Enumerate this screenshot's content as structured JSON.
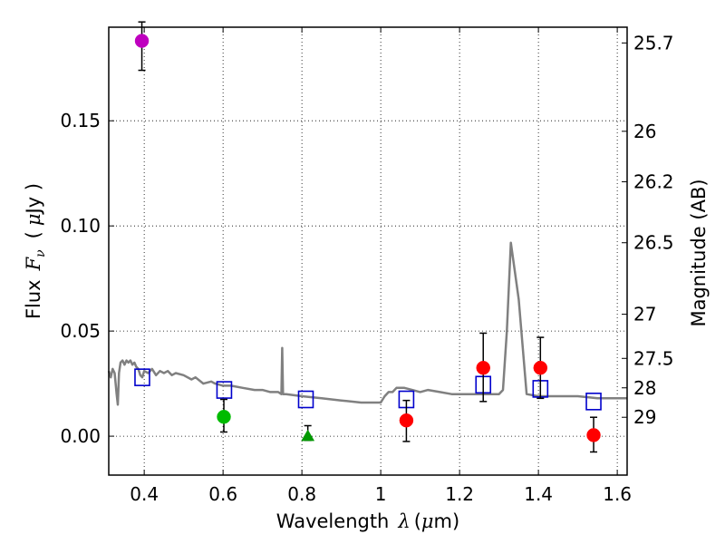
{
  "chart_data": {
    "type": "scatter",
    "xlabel": "Wavelength",
    "xlabel_symbol": "λ",
    "xlabel_unit_open": "(",
    "xlabel_unit_mu": "μ",
    "xlabel_unit_rest": "m)",
    "ylabel": "Flux",
    "ylabel_symbol": "F",
    "ylabel_subscript": "ν",
    "ylabel_unit_open": "(",
    "ylabel_unit_mu": "μ",
    "ylabel_unit_rest": "Jy )",
    "ylabel_right": "Magnitude (AB)",
    "xlim": [
      0.31,
      1.625
    ],
    "ylim": [
      -0.0185,
      0.1945
    ],
    "grid": true,
    "x_ticks": [
      {
        "value": 0.4,
        "label": "0.4"
      },
      {
        "value": 0.6,
        "label": "0.6"
      },
      {
        "value": 0.8,
        "label": "0.8"
      },
      {
        "value": 1.0,
        "label": "1"
      },
      {
        "value": 1.2,
        "label": "1.2"
      },
      {
        "value": 1.4,
        "label": "1.4"
      },
      {
        "value": 1.6,
        "label": "1.6"
      }
    ],
    "y_ticks": [
      {
        "value": 0.0,
        "label": "0.00"
      },
      {
        "value": 0.05,
        "label": "0.05"
      },
      {
        "value": 0.1,
        "label": "0.10"
      },
      {
        "value": 0.15,
        "label": "0.15"
      }
    ],
    "right_ticks": [
      {
        "flux": 0.187,
        "label": "25.7"
      },
      {
        "flux": 0.145,
        "label": "26"
      },
      {
        "flux": 0.121,
        "label": "26.2"
      },
      {
        "flux": 0.092,
        "label": "26.5"
      },
      {
        "flux": 0.058,
        "label": "27"
      },
      {
        "flux": 0.037,
        "label": "27.5"
      },
      {
        "flux": 0.023,
        "label": "28"
      },
      {
        "flux": 0.009,
        "label": "29"
      }
    ],
    "series": [
      {
        "name": "model SED",
        "type": "line",
        "color": "#808080",
        "points": [
          [
            0.31,
            0.031
          ],
          [
            0.315,
            0.028
          ],
          [
            0.32,
            0.032
          ],
          [
            0.325,
            0.03
          ],
          [
            0.33,
            0.02
          ],
          [
            0.333,
            0.015
          ],
          [
            0.336,
            0.03
          ],
          [
            0.34,
            0.035
          ],
          [
            0.345,
            0.036
          ],
          [
            0.35,
            0.034
          ],
          [
            0.355,
            0.036
          ],
          [
            0.36,
            0.035
          ],
          [
            0.365,
            0.036
          ],
          [
            0.37,
            0.034
          ],
          [
            0.375,
            0.035
          ],
          [
            0.38,
            0.033
          ],
          [
            0.385,
            0.032
          ],
          [
            0.39,
            0.029
          ],
          [
            0.395,
            0.028
          ],
          [
            0.4,
            0.031
          ],
          [
            0.41,
            0.03
          ],
          [
            0.42,
            0.032
          ],
          [
            0.43,
            0.029
          ],
          [
            0.44,
            0.031
          ],
          [
            0.45,
            0.03
          ],
          [
            0.46,
            0.031
          ],
          [
            0.47,
            0.029
          ],
          [
            0.48,
            0.03
          ],
          [
            0.5,
            0.029
          ],
          [
            0.52,
            0.027
          ],
          [
            0.53,
            0.028
          ],
          [
            0.55,
            0.025
          ],
          [
            0.57,
            0.026
          ],
          [
            0.58,
            0.025
          ],
          [
            0.6,
            0.024
          ],
          [
            0.62,
            0.024
          ],
          [
            0.65,
            0.023
          ],
          [
            0.68,
            0.022
          ],
          [
            0.7,
            0.022
          ],
          [
            0.72,
            0.021
          ],
          [
            0.74,
            0.021
          ],
          [
            0.748,
            0.02
          ],
          [
            0.75,
            0.042
          ],
          [
            0.752,
            0.02
          ],
          [
            0.76,
            0.02
          ],
          [
            0.8,
            0.019
          ],
          [
            0.85,
            0.018
          ],
          [
            0.9,
            0.017
          ],
          [
            0.95,
            0.016
          ],
          [
            0.98,
            0.016
          ],
          [
            1.0,
            0.016
          ],
          [
            1.01,
            0.019
          ],
          [
            1.02,
            0.021
          ],
          [
            1.03,
            0.021
          ],
          [
            1.04,
            0.023
          ],
          [
            1.06,
            0.023
          ],
          [
            1.08,
            0.022
          ],
          [
            1.1,
            0.021
          ],
          [
            1.12,
            0.022
          ],
          [
            1.15,
            0.021
          ],
          [
            1.18,
            0.02
          ],
          [
            1.2,
            0.02
          ],
          [
            1.25,
            0.02
          ],
          [
            1.28,
            0.02
          ],
          [
            1.3,
            0.02
          ],
          [
            1.31,
            0.022
          ],
          [
            1.32,
            0.05
          ],
          [
            1.33,
            0.092
          ],
          [
            1.35,
            0.065
          ],
          [
            1.37,
            0.02
          ],
          [
            1.4,
            0.019
          ],
          [
            1.45,
            0.019
          ],
          [
            1.5,
            0.019
          ],
          [
            1.55,
            0.018
          ],
          [
            1.6,
            0.018
          ],
          [
            1.625,
            0.018
          ]
        ]
      },
      {
        "name": "model photometry",
        "type": "open-square",
        "color": "#0000cc",
        "points": [
          [
            0.395,
            0.028
          ],
          [
            0.603,
            0.022
          ],
          [
            0.81,
            0.0175
          ],
          [
            1.065,
            0.0175
          ],
          [
            1.26,
            0.0245
          ],
          [
            1.405,
            0.0225
          ],
          [
            1.54,
            0.0165
          ]
        ]
      },
      {
        "name": "violet point",
        "type": "circle",
        "color": "#bf00bf",
        "points": [
          {
            "x": 0.394,
            "y": 0.188,
            "err_low": 0.174,
            "err_high": 0.197
          }
        ]
      },
      {
        "name": "green point",
        "type": "circle",
        "color": "#00bb00",
        "points": [
          {
            "x": 0.602,
            "y": 0.0092,
            "err_low": 0.002,
            "err_high": 0.0175
          }
        ]
      },
      {
        "name": "upper limit",
        "type": "triangle",
        "color": "#009900",
        "points": [
          {
            "x": 0.815,
            "y": 0.0,
            "err_low": -0.002,
            "err_high": 0.005
          }
        ]
      },
      {
        "name": "red points",
        "type": "circle",
        "color": "#ff0000",
        "points": [
          {
            "x": 1.065,
            "y": 0.0075,
            "err_low": -0.0025,
            "err_high": 0.017
          },
          {
            "x": 1.26,
            "y": 0.0325,
            "err_low": 0.0165,
            "err_high": 0.049
          },
          {
            "x": 1.405,
            "y": 0.0325,
            "err_low": 0.018,
            "err_high": 0.047
          },
          {
            "x": 1.54,
            "y": 0.0005,
            "err_low": -0.0075,
            "err_high": 0.009
          }
        ]
      }
    ]
  }
}
